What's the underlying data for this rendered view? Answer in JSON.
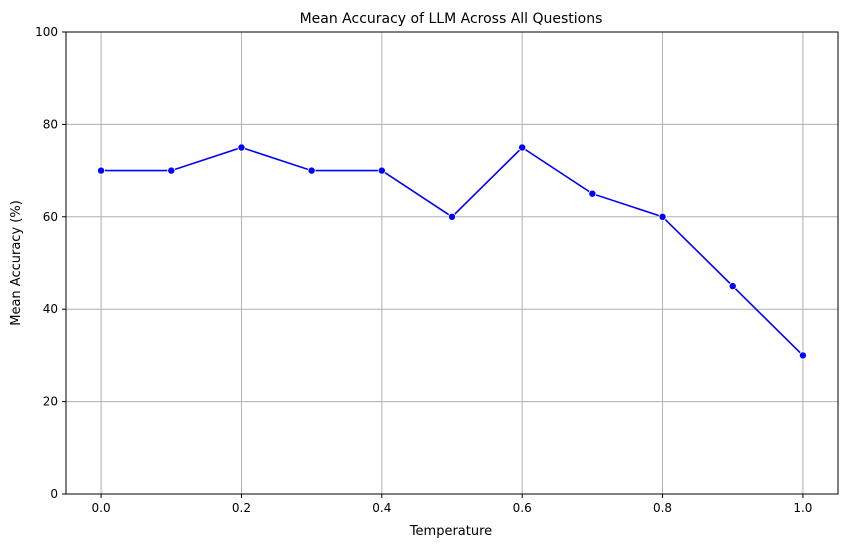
{
  "chart_data": {
    "type": "line",
    "title": "Mean Accuracy of LLM Across All Questions",
    "xlabel": "Temperature",
    "ylabel": "Mean Accuracy (%)",
    "xlim": [
      -0.05,
      1.05
    ],
    "ylim": [
      0,
      100
    ],
    "xticks": [
      0.0,
      0.2,
      0.4,
      0.6,
      0.8,
      1.0
    ],
    "xtick_labels": [
      "0.0",
      "0.2",
      "0.4",
      "0.6",
      "0.8",
      "1.0"
    ],
    "yticks": [
      0,
      20,
      40,
      60,
      80,
      100
    ],
    "ytick_labels": [
      "0",
      "20",
      "40",
      "60",
      "80",
      "100"
    ],
    "grid": true,
    "series": [
      {
        "color": "#0000ff",
        "marker": "circle",
        "x": [
          0.0,
          0.1,
          0.2,
          0.3,
          0.4,
          0.5,
          0.6,
          0.7,
          0.8,
          0.9,
          1.0
        ],
        "y": [
          70,
          70,
          75,
          70,
          70,
          60,
          75,
          65,
          60,
          45,
          30
        ]
      }
    ]
  }
}
